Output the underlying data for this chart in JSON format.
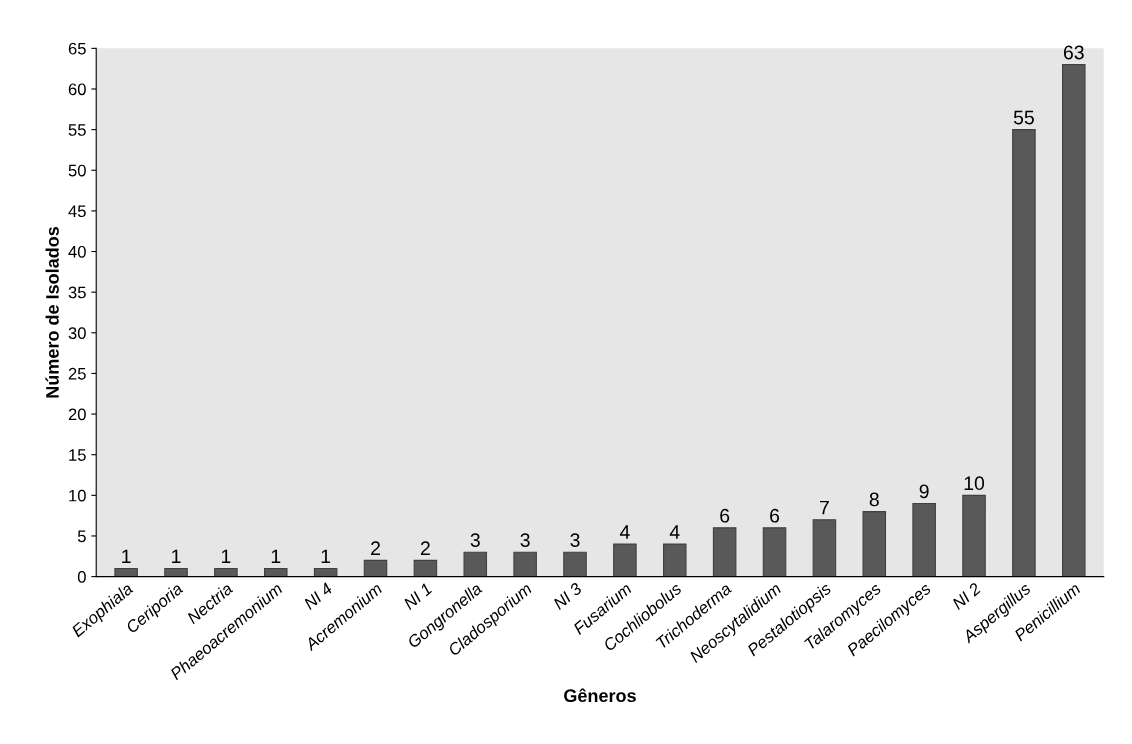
{
  "chart_data": {
    "type": "bar",
    "xlabel": "Gêneros",
    "ylabel": "Número de Isolados",
    "categories": [
      "Exophiala",
      "Ceriporia",
      "Nectria",
      "Phaeoacremonium",
      "NI 4",
      "Acremonium",
      "NI 1",
      "Gongronella",
      "Cladosporium",
      "NI 3",
      "Fusarium",
      "Cochliobolus",
      "Trichoderma",
      "Neoscytalidium",
      "Pestalotiopsis",
      "Talaromyces",
      "Paecilomyces",
      "NI 2",
      "Aspergillus",
      "Penicillium"
    ],
    "values": [
      1,
      1,
      1,
      1,
      1,
      2,
      2,
      3,
      3,
      3,
      4,
      4,
      6,
      6,
      7,
      8,
      9,
      10,
      55,
      63
    ],
    "color": "#595959",
    "ylim": [
      0,
      65
    ],
    "yticks": [
      0,
      5,
      10,
      15,
      20,
      25,
      30,
      35,
      40,
      45,
      50,
      55,
      60,
      65
    ],
    "grid": false,
    "legend": false,
    "data_labels": true
  }
}
